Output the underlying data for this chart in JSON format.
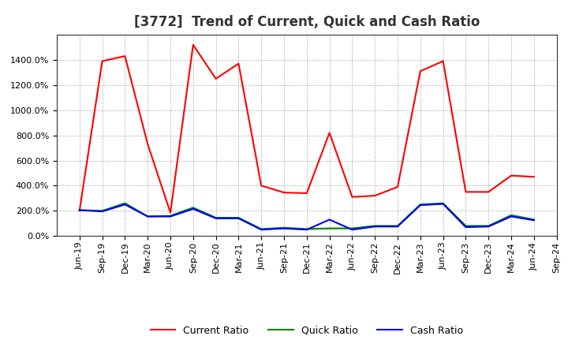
{
  "title": "[3772]  Trend of Current, Quick and Cash Ratio",
  "x_labels": [
    "Jun-19",
    "Sep-19",
    "Dec-19",
    "Mar-20",
    "Jun-20",
    "Sep-20",
    "Dec-20",
    "Mar-21",
    "Jun-21",
    "Sep-21",
    "Dec-21",
    "Mar-22",
    "Jun-22",
    "Sep-22",
    "Dec-22",
    "Mar-23",
    "Jun-23",
    "Sep-23",
    "Dec-23",
    "Mar-24",
    "Jun-24",
    "Sep-24"
  ],
  "current_ratio": [
    200,
    1390,
    1430,
    730,
    185,
    1520,
    1250,
    1370,
    400,
    345,
    340,
    820,
    310,
    320,
    390,
    1310,
    1390,
    350,
    350,
    480,
    470,
    null
  ],
  "quick_ratio": [
    205,
    200,
    260,
    155,
    160,
    225,
    145,
    145,
    55,
    65,
    55,
    60,
    60,
    80,
    80,
    250,
    260,
    80,
    80,
    165,
    130,
    null
  ],
  "cash_ratio": [
    205,
    195,
    250,
    155,
    155,
    215,
    140,
    140,
    50,
    60,
    50,
    130,
    50,
    75,
    75,
    245,
    255,
    70,
    75,
    155,
    125,
    null
  ],
  "current_color": "#ff0000",
  "quick_color": "#008000",
  "cash_color": "#0000ff",
  "bg_color": "#ffffff",
  "plot_bg_color": "#ffffff",
  "grid_color": "#999999",
  "ylim": [
    0,
    1600
  ],
  "yticks": [
    0,
    200,
    400,
    600,
    800,
    1000,
    1200,
    1400
  ],
  "title_fontsize": 12,
  "legend_fontsize": 9,
  "tick_fontsize": 8
}
